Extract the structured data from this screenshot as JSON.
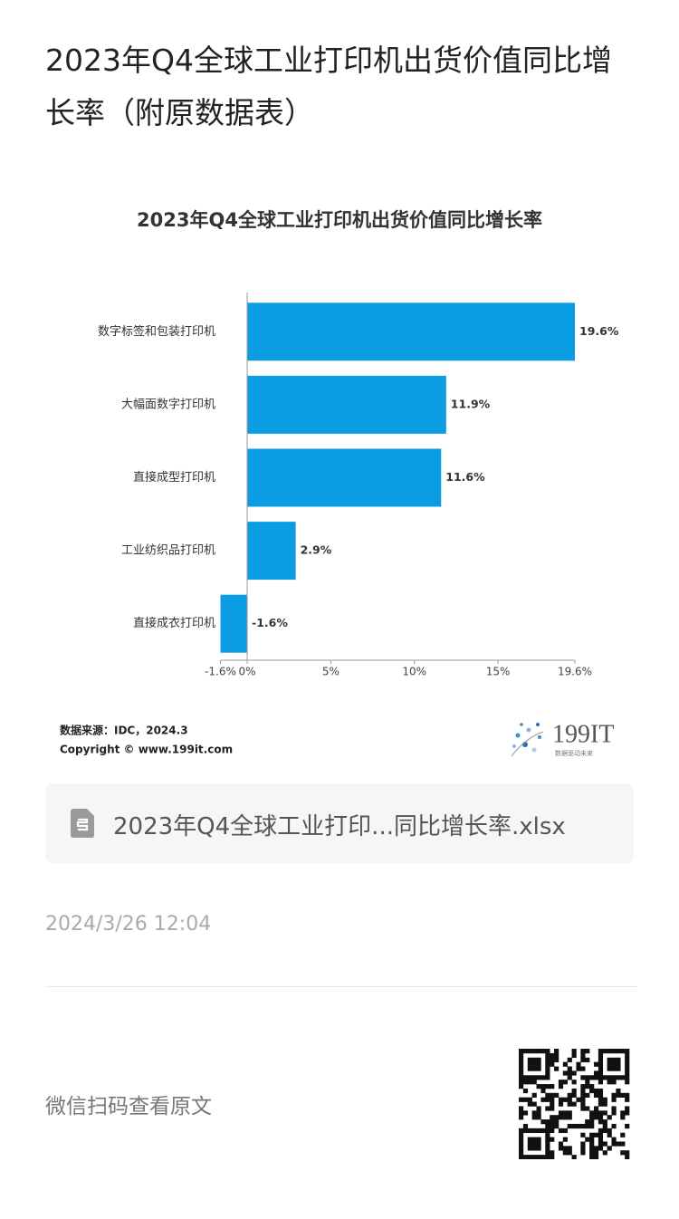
{
  "page_title": "2023年Q4全球工业打印机出货价值同比增长率（附原数据表）",
  "chart_data": {
    "type": "bar",
    "orientation": "horizontal",
    "title": "2023年Q4全球工业打印机出货价值同比增长率",
    "categories": [
      "数字标签和包装打印机",
      "大幅面数字打印机",
      "直接成型打印机",
      "工业纺织品打印机",
      "直接成衣打印机"
    ],
    "values": [
      19.6,
      11.9,
      11.6,
      2.9,
      -1.6
    ],
    "value_labels": [
      "19.6%",
      "11.9%",
      "11.6%",
      "2.9%",
      "-1.6%"
    ],
    "color": "#0b9de3",
    "xlim": [
      -1.6,
      19.6
    ],
    "xticks": [
      {
        "value": -1.6,
        "label": "-1.6%"
      },
      {
        "value": 0,
        "label": "0%"
      },
      {
        "value": 5,
        "label": "5%"
      },
      {
        "value": 10,
        "label": "10%"
      },
      {
        "value": 15,
        "label": "15%"
      },
      {
        "value": 19.6,
        "label": "19.6%"
      }
    ]
  },
  "source": "数据来源：IDC，2024.3",
  "copyright": "Copyright © www.199it.com",
  "logo": {
    "name": "199IT",
    "tagline": "数据驱动未来"
  },
  "attachment": "2023年Q4全球工业打印...同比增长率.xlsx",
  "date": "2024/3/26 12:04",
  "footer": "微信扫码查看原文"
}
